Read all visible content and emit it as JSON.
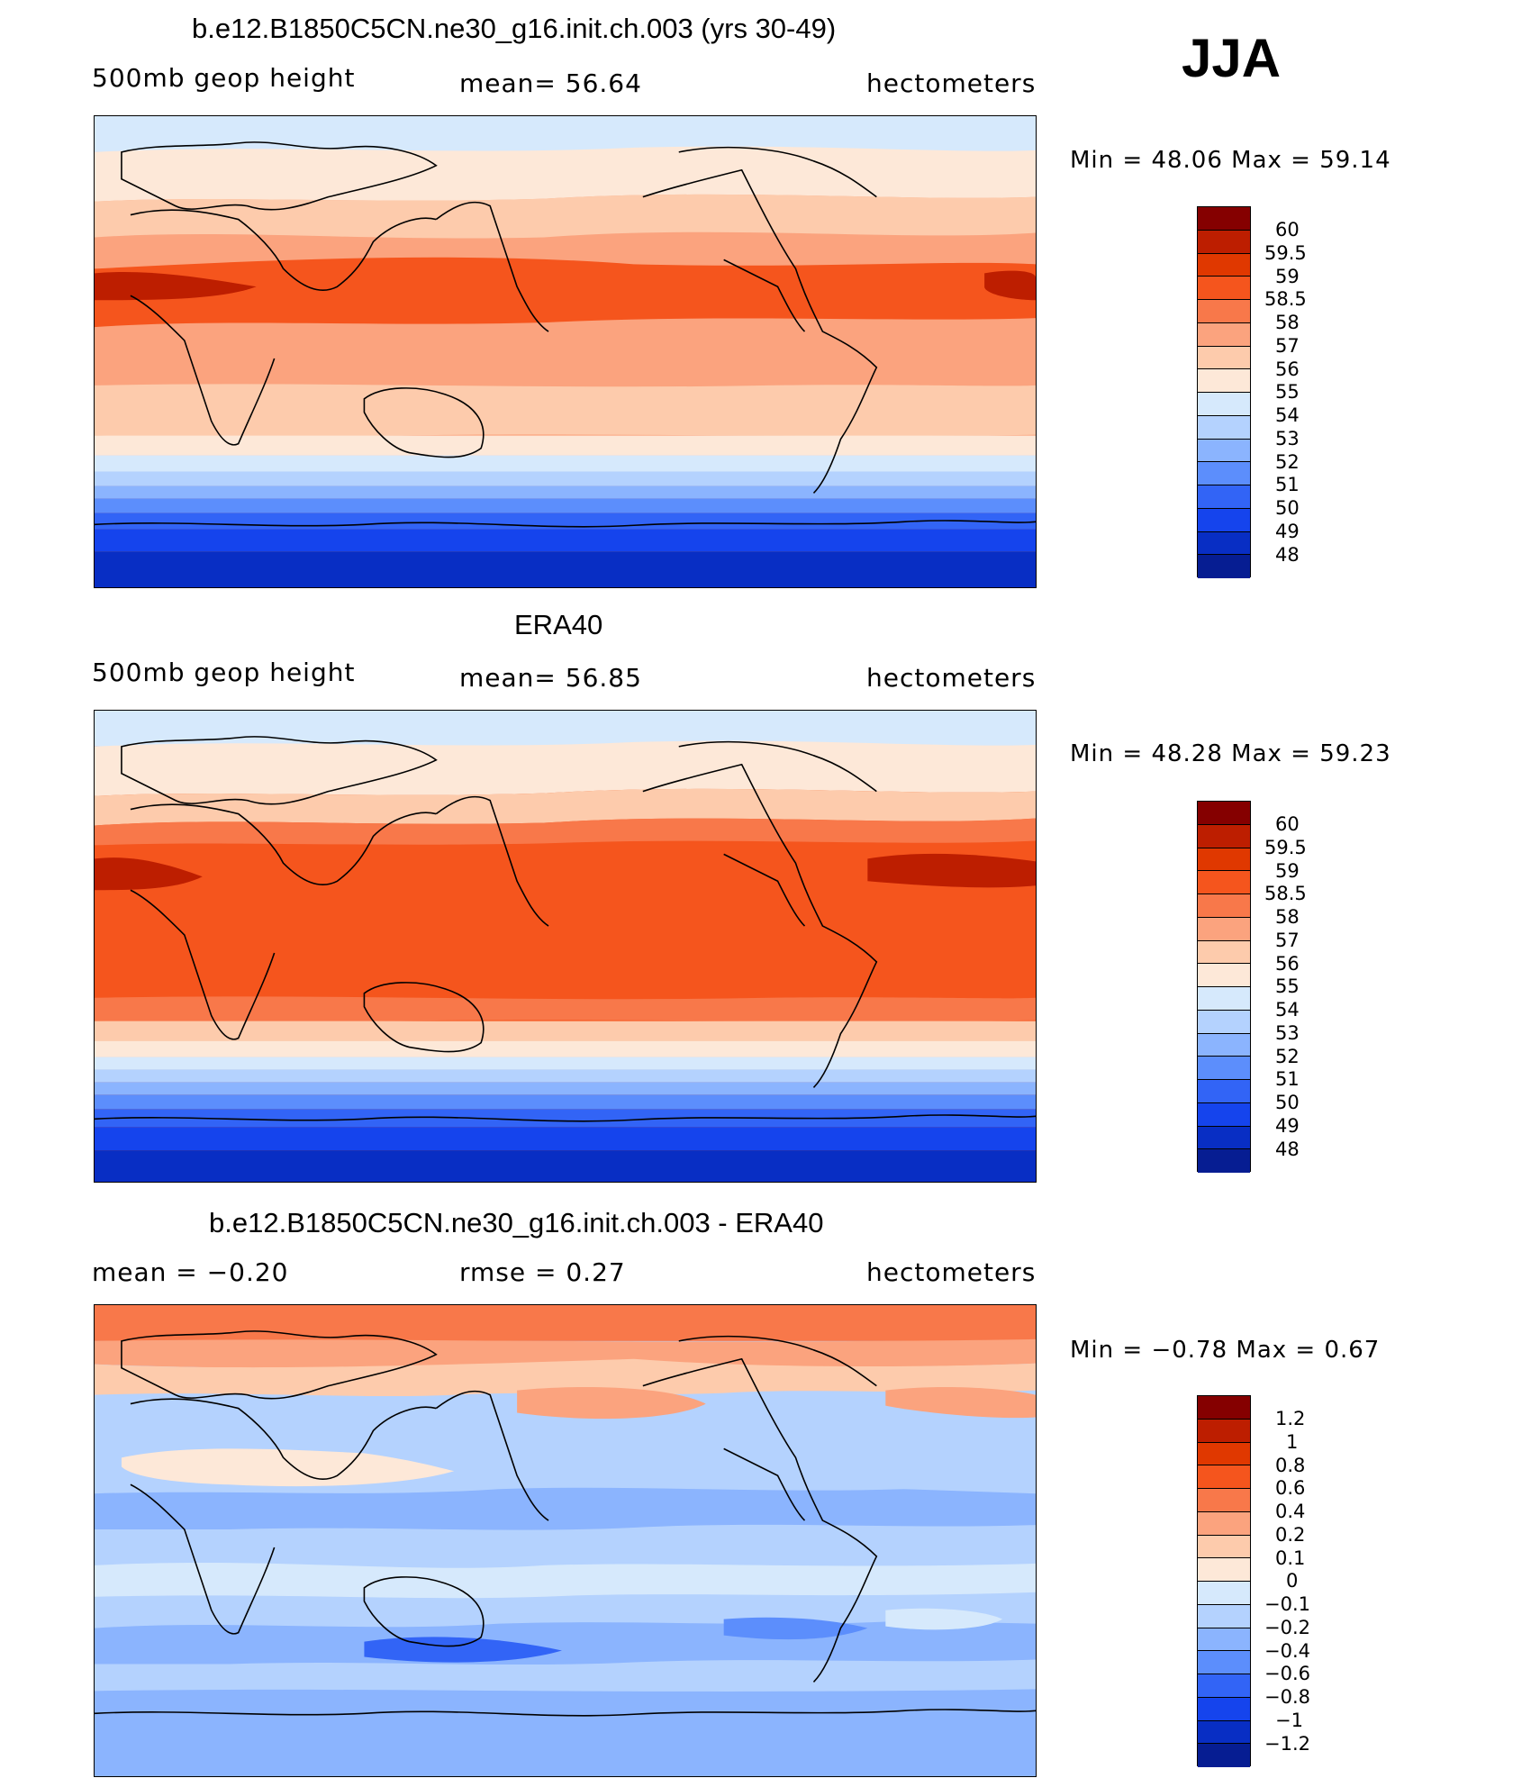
{
  "season": "JJA",
  "panels": [
    {
      "title": "b.e12.B1850C5CN.ne30_g16.init.ch.003 (yrs 30-49)",
      "left": "500mb  geop  height",
      "center": "mean=   56.64",
      "right": "hectometers",
      "minmax": "Min  =    48.06  Max  =    59.14",
      "map_description": "Model 500mb geopotential height, JJA climatology",
      "colors": [
        "#850000",
        "#bd1e00",
        "#e03800",
        "#f5551d",
        "#f8784a",
        "#fba37e",
        "#fdcbac",
        "#fde8d8",
        "#d6e9fc",
        "#b4d2fe",
        "#8bb4fe",
        "#5c8efc",
        "#3264f6",
        "#1544ed",
        "#082ec4",
        "#061d92"
      ],
      "levels": [
        "60",
        "59.5",
        "59",
        "58.5",
        "58",
        "57",
        "56",
        "55",
        "54",
        "53",
        "52",
        "51",
        "50",
        "49",
        "48"
      ]
    },
    {
      "title": "ERA40",
      "left": "500mb  geop  height",
      "center": "mean=   56.85",
      "right": "hectometers",
      "minmax": "Min  =    48.28  Max  =    59.23",
      "map_description": "ERA40 reanalysis 500mb geopotential height, JJA",
      "colors": [
        "#850000",
        "#bd1e00",
        "#e03800",
        "#f5551d",
        "#f8784a",
        "#fba37e",
        "#fdcbac",
        "#fde8d8",
        "#d6e9fc",
        "#b4d2fe",
        "#8bb4fe",
        "#5c8efc",
        "#3264f6",
        "#1544ed",
        "#082ec4",
        "#061d92"
      ],
      "levels": [
        "60",
        "59.5",
        "59",
        "58.5",
        "58",
        "57",
        "56",
        "55",
        "54",
        "53",
        "52",
        "51",
        "50",
        "49",
        "48"
      ]
    },
    {
      "title": "b.e12.B1850C5CN.ne30_g16.init.ch.003 - ERA40",
      "left": "mean  =    −0.20",
      "center": "rmse  =     0.27",
      "right": "hectometers",
      "minmax": "Min  =    −0.78  Max  =     0.67",
      "map_description": "Model minus ERA40 difference, JJA",
      "colors": [
        "#850000",
        "#bd1e00",
        "#e03800",
        "#f5551d",
        "#f8784a",
        "#fba37e",
        "#fdcbac",
        "#fde8d8",
        "#d6e9fc",
        "#b4d2fe",
        "#8bb4fe",
        "#5c8efc",
        "#3264f6",
        "#1544ed",
        "#082ec4",
        "#061d92"
      ],
      "levels": [
        "1.2",
        "1",
        "0.8",
        "0.6",
        "0.4",
        "0.2",
        "0.1",
        "0",
        "−0.1",
        "−0.2",
        "−0.4",
        "−0.6",
        "−0.8",
        "−1",
        "−1.2"
      ]
    }
  ]
}
